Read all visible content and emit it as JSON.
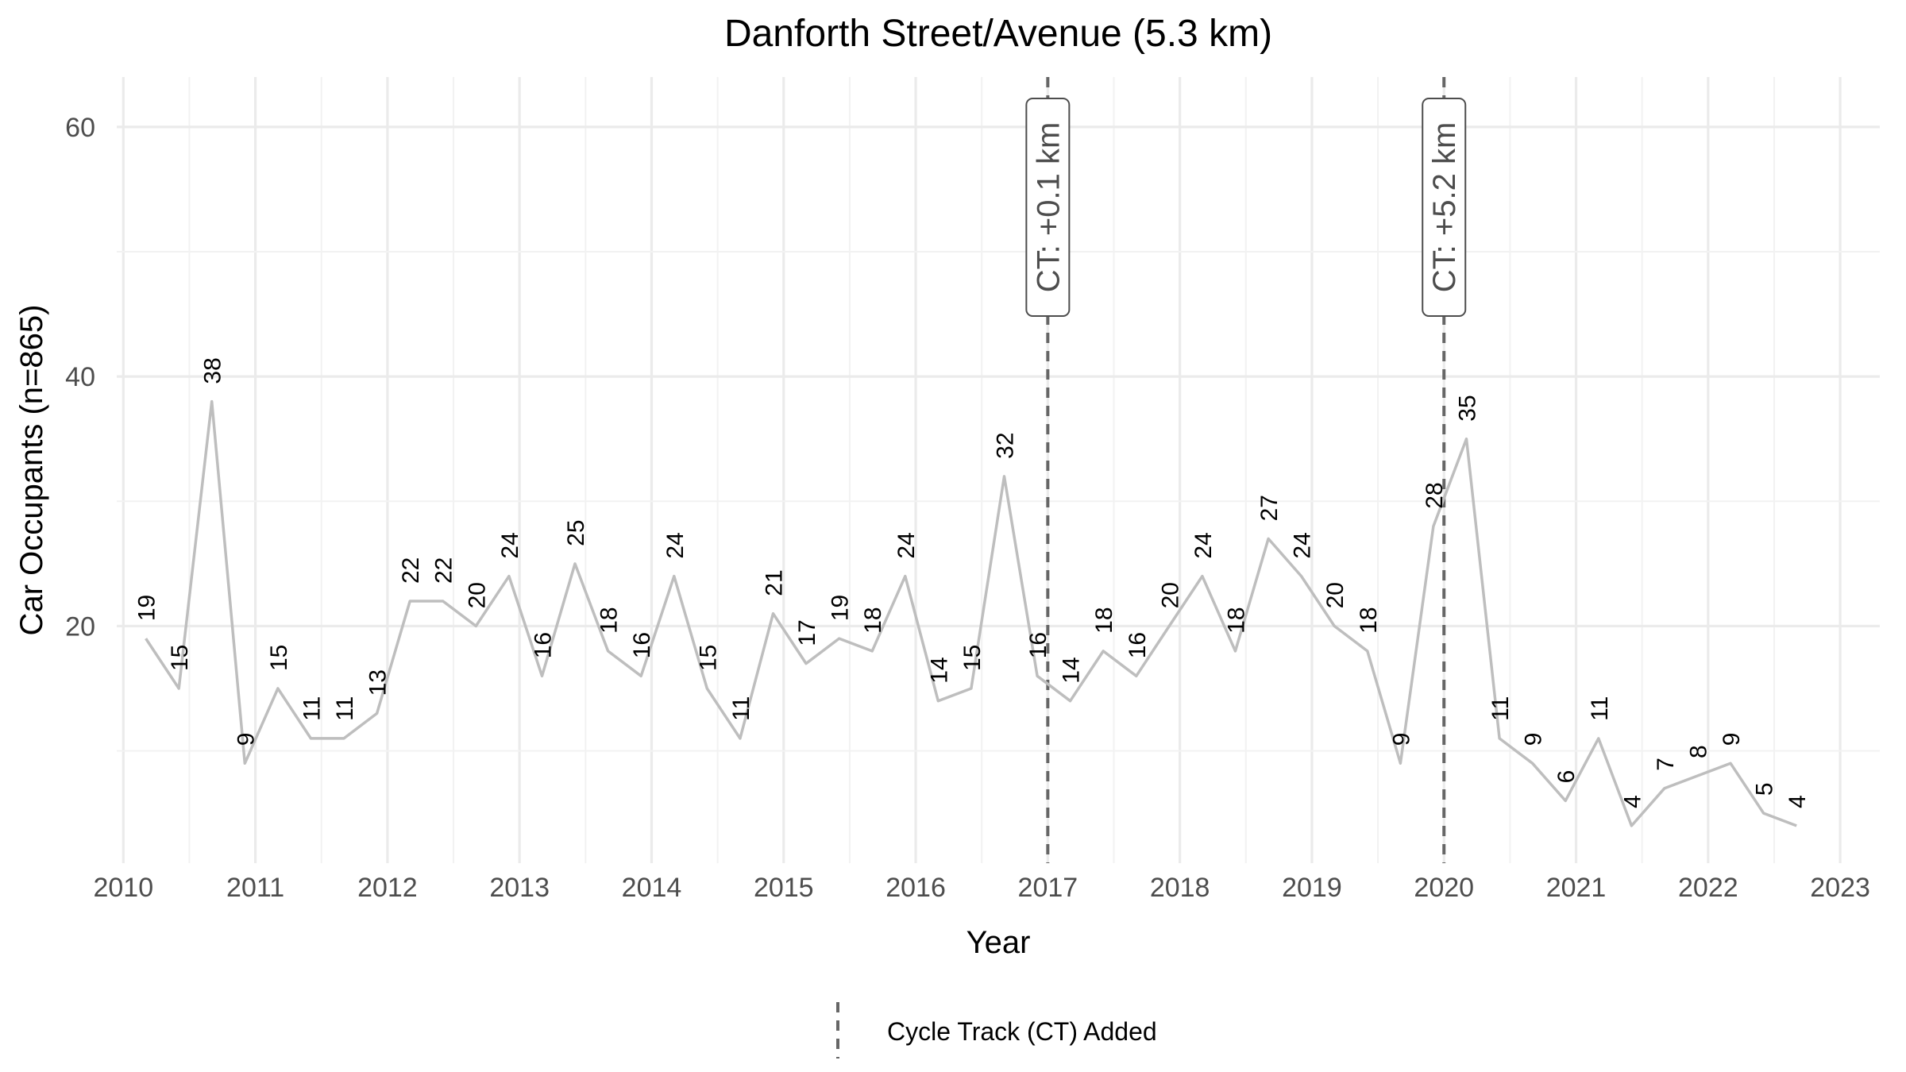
{
  "chart_data": {
    "type": "line",
    "title": "Danforth Street/Avenue (5.3 km)",
    "xlabel": "Year",
    "ylabel": "Car Occupants (n=865)",
    "xlim": [
      2009.95,
      2023.3
    ],
    "ylim": [
      1,
      64
    ],
    "x_ticks": [
      "2010",
      "2011",
      "2012",
      "2013",
      "2014",
      "2015",
      "2016",
      "2017",
      "2018",
      "2019",
      "2020",
      "2021",
      "2022",
      "2023"
    ],
    "y_ticks": [
      "20",
      "40",
      "60"
    ],
    "grid": true,
    "line_color": "#bebebe",
    "series": [
      {
        "x": [
          2010.17,
          2010.42,
          2010.67,
          2010.92,
          2011.17,
          2011.42,
          2011.67,
          2011.92,
          2012.17,
          2012.42,
          2012.67,
          2012.92,
          2013.17,
          2013.42,
          2013.67,
          2013.92,
          2014.17,
          2014.42,
          2014.67,
          2014.92,
          2015.17,
          2015.42,
          2015.67,
          2015.92,
          2016.17,
          2016.42,
          2016.67,
          2016.92,
          2017.17,
          2017.42,
          2017.67,
          2017.92,
          2018.17,
          2018.42,
          2018.67,
          2018.92,
          2019.17,
          2019.42,
          2019.67,
          2019.92,
          2020.17,
          2020.42,
          2020.67,
          2020.92,
          2021.17,
          2021.42,
          2021.67,
          2021.92,
          2022.17,
          2022.42,
          2022.67
        ],
        "y": [
          19,
          15,
          38,
          9,
          15,
          11,
          11,
          13,
          22,
          22,
          20,
          24,
          16,
          25,
          18,
          16,
          24,
          15,
          11,
          21,
          17,
          19,
          18,
          24,
          14,
          15,
          32,
          16,
          14,
          18,
          16,
          20,
          24,
          18,
          27,
          24,
          20,
          18,
          9,
          28,
          35,
          11,
          9,
          6,
          11,
          4,
          7,
          8,
          9,
          5,
          4
        ]
      }
    ],
    "annotations": [
      {
        "x": 2017.0,
        "label": "CT: +0.1 km"
      },
      {
        "x": 2020.0,
        "label": "CT: +5.2 km"
      }
    ],
    "legend": {
      "label": "Cycle Track (CT) Added",
      "position": "bottom"
    }
  }
}
